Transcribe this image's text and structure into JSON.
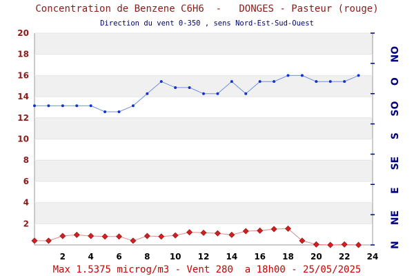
{
  "header": {
    "title": "Concentration de Benzene C6H6  -   DONGES - Pasteur (rouge)",
    "subtitle": "Direction du vent 0-350 , sens Nord-Est-Sud-Ouest"
  },
  "footer": {
    "text": "Max 1.5375 microg/m3 - Vent 280  a 18h00 - 25/05/2025"
  },
  "colors": {
    "concentration": "#cc2222",
    "wind": "#1133cc",
    "title": "#8b1a1a",
    "footer": "#cc0000",
    "band": "#f0f0f0"
  },
  "chart_data": {
    "type": "line",
    "title": "Concentration de Benzene C6H6  -   DONGES - Pasteur (rouge)",
    "subtitle": "Direction du vent 0-350 , sens Nord-Est-Sud-Ouest",
    "xlim": [
      0,
      24
    ],
    "xticks": [
      2,
      4,
      6,
      8,
      10,
      12,
      14,
      16,
      18,
      20,
      22,
      24
    ],
    "ylim": [
      0,
      20
    ],
    "yticks": [
      2,
      4,
      6,
      8,
      10,
      12,
      14,
      16,
      18,
      20
    ],
    "right_axis": {
      "labels": [
        "N",
        "NE",
        "E",
        "SE",
        "S",
        "SO",
        "O",
        "NO"
      ],
      "range": [
        0,
        350
      ]
    },
    "grid": "alternating horizontal bands",
    "series": [
      {
        "axis": "left",
        "color": "#cc2222",
        "marker": "diamond",
        "x": [
          0,
          1,
          2,
          3,
          4,
          5,
          6,
          7,
          8,
          9,
          10,
          11,
          12,
          13,
          14,
          15,
          16,
          17,
          18,
          19,
          20,
          21,
          22,
          23
        ],
        "values": [
          0.4,
          0.4,
          0.85,
          0.95,
          0.85,
          0.8,
          0.8,
          0.4,
          0.85,
          0.8,
          0.9,
          1.2,
          1.15,
          1.1,
          0.95,
          1.3,
          1.35,
          1.5,
          1.5375,
          0.4,
          0.05,
          0.0,
          0.05,
          0.0
        ]
      },
      {
        "axis": "right",
        "color": "#1133cc",
        "marker": "dot",
        "x": [
          0,
          1,
          2,
          3,
          4,
          5,
          6,
          7,
          8,
          9,
          10,
          11,
          12,
          13,
          14,
          15,
          16,
          17,
          18,
          19,
          20,
          21,
          22,
          23
        ],
        "values": [
          230,
          230,
          230,
          230,
          230,
          220,
          220,
          230,
          250,
          270,
          260,
          260,
          250,
          250,
          270,
          250,
          270,
          270,
          280,
          280,
          270,
          270,
          270,
          280
        ]
      }
    ]
  }
}
